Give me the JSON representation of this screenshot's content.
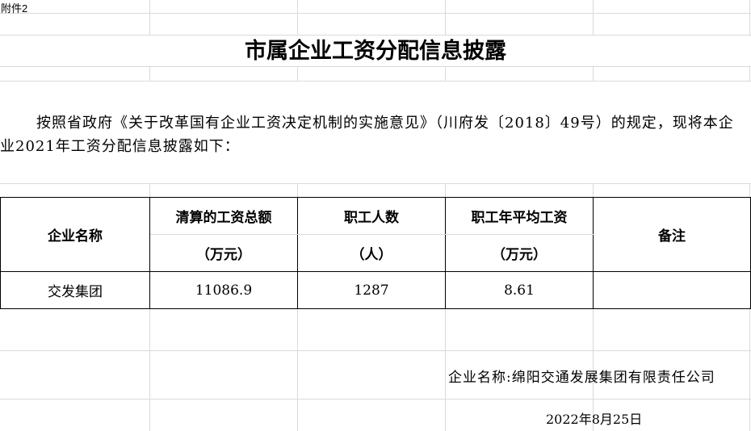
{
  "attachment_label": "附件2",
  "title": "市属企业工资分配信息披露",
  "intro": "按照省政府《关于改革国有企业工资决定机制的实施意见》（川府发〔2018〕49号）的规定，现将本企业2021年工资分配信息披露如下：",
  "table": {
    "headers": {
      "company": "企业名称",
      "total_wage": "清算的工资总额",
      "total_wage_unit": "（万元）",
      "employees": "职工人数",
      "employees_unit": "（人）",
      "avg_wage": "职工年平均工资",
      "avg_wage_unit": "（万元）",
      "remarks": "备注"
    },
    "rows": [
      {
        "company": "交发集团",
        "total_wage": "11086.9",
        "employees": "1287",
        "avg_wage": "8.61",
        "remarks": ""
      }
    ]
  },
  "signature": "企业名称:绵阳交通发展集团有限责任公司",
  "date": "2022年8月25日"
}
